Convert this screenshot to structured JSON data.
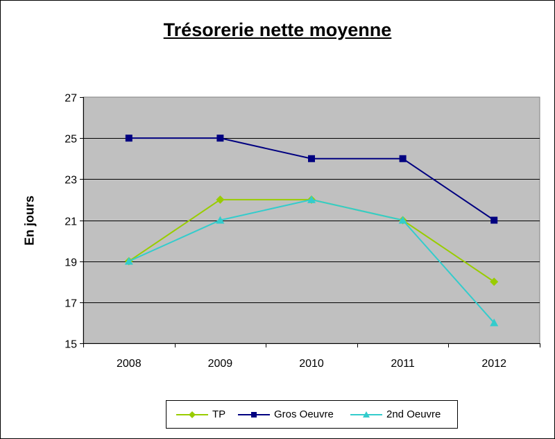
{
  "chart_data": {
    "type": "line",
    "title": "Trésorerie nette moyenne",
    "xlabel": "",
    "ylabel": "En jours",
    "categories": [
      "2008",
      "2009",
      "2010",
      "2011",
      "2012"
    ],
    "ylim": [
      15,
      27
    ],
    "yticks": [
      15,
      17,
      19,
      21,
      23,
      25,
      27
    ],
    "grid": true,
    "plot_background": "#c0c0c0",
    "legend_position": "bottom",
    "series": [
      {
        "name": "TP",
        "values": [
          19,
          22,
          22,
          21,
          18
        ],
        "color": "#99cc00",
        "marker": "diamond"
      },
      {
        "name": "Gros Oeuvre",
        "values": [
          25,
          25,
          24,
          24,
          21
        ],
        "color": "#000080",
        "marker": "square"
      },
      {
        "name": "2nd Oeuvre",
        "values": [
          19,
          21,
          22,
          21,
          16
        ],
        "color": "#33cccc",
        "marker": "triangle"
      }
    ]
  }
}
